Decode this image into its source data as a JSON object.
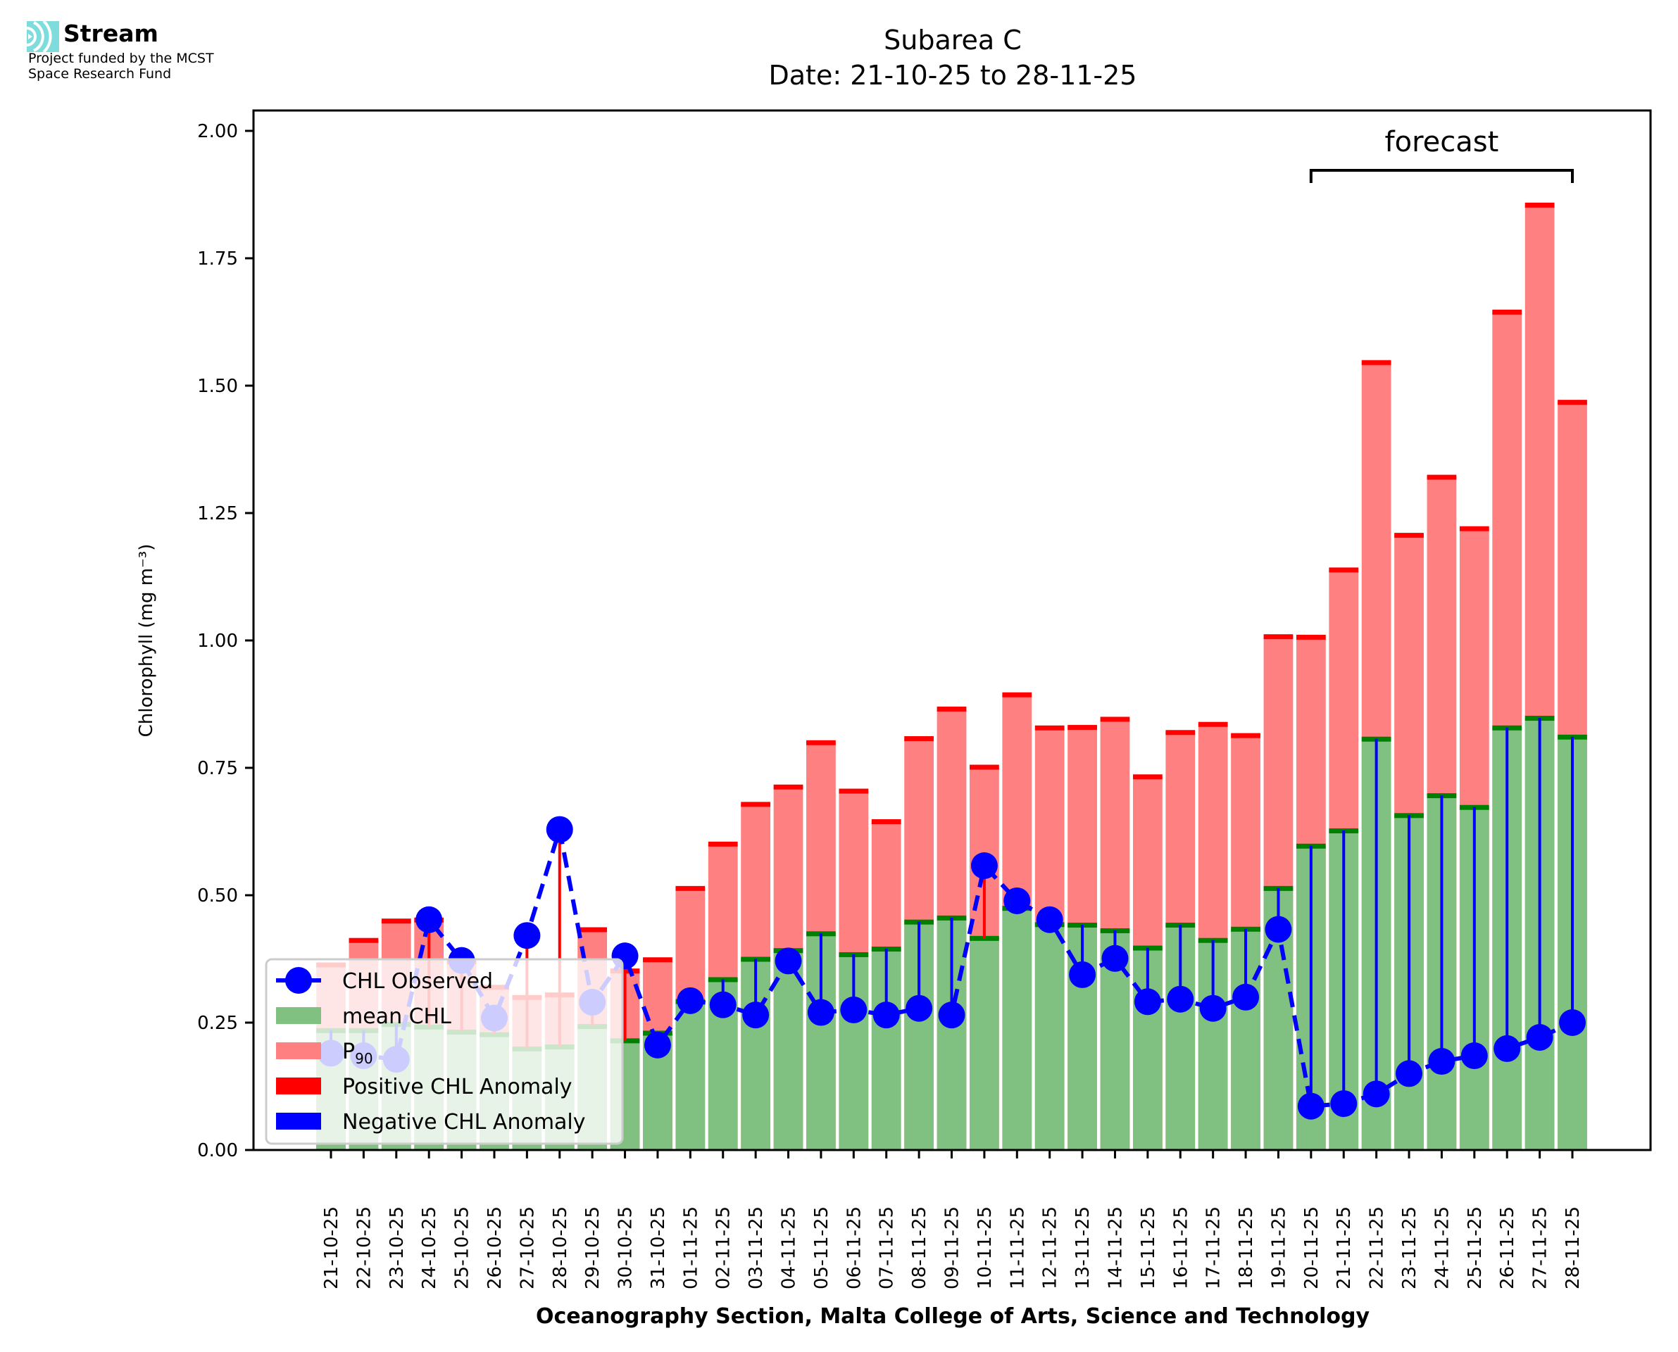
{
  "logo": {
    "name": "Stream",
    "icon": "stream-waves-icon",
    "line1": "Project funded by the MCST",
    "line2": "Space Research Fund",
    "color": "#7fdcdc"
  },
  "chart_data": {
    "type": "bar",
    "title_line1": "Subarea C",
    "title_line2": "Date: 21-10-25 to 28-11-25",
    "xlabel": "Oceanography Section, Malta College of Arts, Science and Technology",
    "ylabel": "Chlorophyll (mg m⁻³)",
    "ylim": [
      0,
      2.04
    ],
    "yticks": [
      0.0,
      0.25,
      0.5,
      0.75,
      1.0,
      1.25,
      1.5,
      1.75,
      2.0
    ],
    "ytick_labels": [
      "0.00",
      "0.25",
      "0.50",
      "0.75",
      "1.00",
      "1.25",
      "1.50",
      "1.75",
      "2.00"
    ],
    "grid": false,
    "categories": [
      "21-10-25",
      "22-10-25",
      "23-10-25",
      "24-10-25",
      "25-10-25",
      "26-10-25",
      "27-10-25",
      "28-10-25",
      "29-10-25",
      "30-10-25",
      "31-10-25",
      "01-11-25",
      "02-11-25",
      "03-11-25",
      "04-11-25",
      "05-11-25",
      "06-11-25",
      "07-11-25",
      "08-11-25",
      "09-11-25",
      "10-11-25",
      "11-11-25",
      "12-11-25",
      "13-11-25",
      "14-11-25",
      "15-11-25",
      "16-11-25",
      "17-11-25",
      "18-11-25",
      "19-11-25",
      "20-11-25",
      "21-11-25",
      "22-11-25",
      "23-11-25",
      "24-11-25",
      "25-11-25",
      "26-11-25",
      "27-11-25",
      "28-11-25"
    ],
    "series": [
      {
        "name": "P90",
        "label": "P",
        "label_sub": "90",
        "kind": "bar",
        "color": "#ff8080",
        "edge_color": "#ff0000",
        "values": [
          0.364,
          0.412,
          0.45,
          0.452,
          0.37,
          0.32,
          0.3,
          0.305,
          0.433,
          0.352,
          0.374,
          0.514,
          0.601,
          0.679,
          0.713,
          0.8,
          0.705,
          0.645,
          0.808,
          0.866,
          0.752,
          0.894,
          0.829,
          0.83,
          0.846,
          0.733,
          0.82,
          0.836,
          0.814,
          1.008,
          1.007,
          1.139,
          1.546,
          1.207,
          1.321,
          1.22,
          1.645,
          1.855,
          1.468
        ]
      },
      {
        "name": "mean CHL",
        "label": "mean CHL",
        "kind": "bar",
        "color": "#80c080",
        "edge_color": "#008000",
        "values": [
          0.235,
          0.235,
          0.247,
          0.242,
          0.232,
          0.227,
          0.199,
          0.203,
          0.243,
          0.215,
          0.23,
          0.292,
          0.335,
          0.375,
          0.392,
          0.425,
          0.384,
          0.395,
          0.448,
          0.456,
          0.416,
          0.475,
          0.443,
          0.442,
          0.431,
          0.397,
          0.442,
          0.412,
          0.434,
          0.514,
          0.597,
          0.627,
          0.807,
          0.657,
          0.696,
          0.673,
          0.829,
          0.848,
          0.811
        ]
      },
      {
        "name": "CHL Observed",
        "label": "CHL Observed",
        "kind": "line",
        "color": "#0000ff",
        "linestyle": "dashed",
        "marker": "circle",
        "values": [
          0.19,
          0.185,
          0.178,
          0.452,
          0.372,
          0.259,
          0.421,
          0.629,
          0.29,
          0.381,
          0.206,
          0.293,
          0.285,
          0.265,
          0.371,
          0.27,
          0.275,
          0.265,
          0.278,
          0.265,
          0.558,
          0.489,
          0.452,
          0.344,
          0.376,
          0.291,
          0.296,
          0.278,
          0.3,
          0.433,
          0.086,
          0.091,
          0.11,
          0.15,
          0.174,
          0.185,
          0.199,
          0.221,
          0.25
        ]
      }
    ],
    "anomaly_legend": [
      {
        "name": "Positive CHL Anomaly",
        "color": "#ff0000"
      },
      {
        "name": "Negative CHL Anomaly",
        "color": "#0000ff"
      }
    ],
    "legend_position": "lower-left",
    "annotation": {
      "text": "forecast",
      "start_category": "20-11-25",
      "end_category": "28-11-25"
    }
  }
}
